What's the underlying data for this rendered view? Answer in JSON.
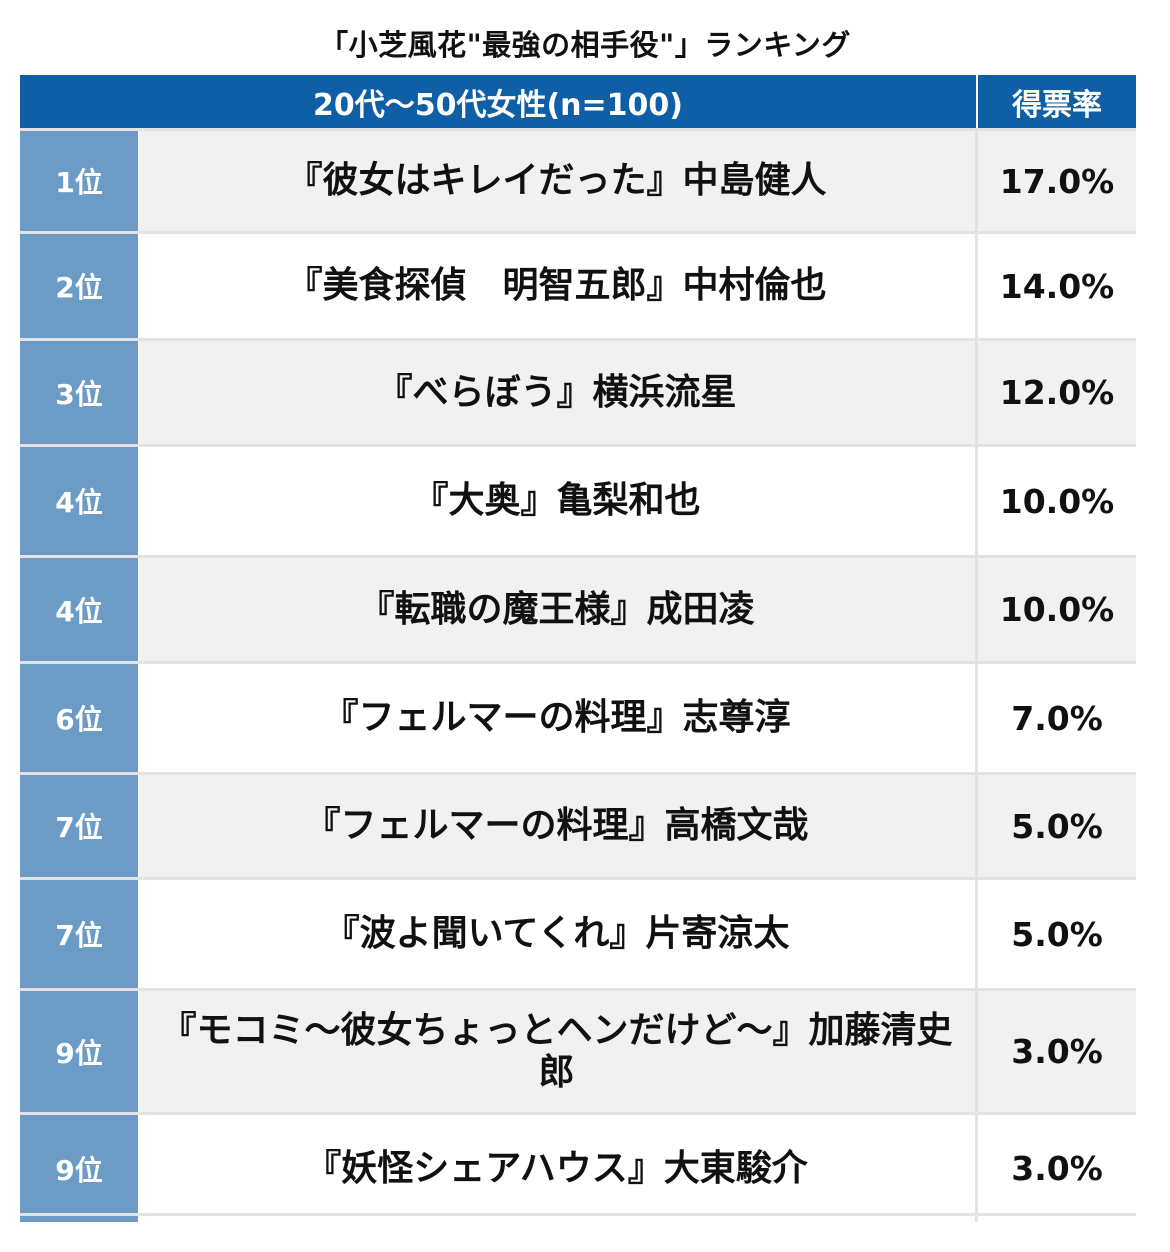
{
  "title": "「小芝風花\"最強の相手役\"」ランキング",
  "header": {
    "group_label": "20代〜50代女性(n=100)",
    "rate_label": "得票率"
  },
  "colors": {
    "header_bg": "#0f5fa6",
    "rank_bg": "#6c9cc6",
    "row_alt_bg": "#f1f1f1"
  },
  "rows": [
    {
      "rank": "1位",
      "name": "『彼女はキレイだった』中島健人",
      "rate": "17.0%"
    },
    {
      "rank": "2位",
      "name": "『美食探偵　明智五郎』中村倫也",
      "rate": "14.0%"
    },
    {
      "rank": "3位",
      "name": "『べらぼう』横浜流星",
      "rate": "12.0%"
    },
    {
      "rank": "4位",
      "name": "『大奥』亀梨和也",
      "rate": "10.0%"
    },
    {
      "rank": "4位",
      "name": "『転職の魔王様』成田凌",
      "rate": "10.0%"
    },
    {
      "rank": "6位",
      "name": "『フェルマーの料理』志尊淳",
      "rate": "7.0%"
    },
    {
      "rank": "7位",
      "name": "『フェルマーの料理』高橋文哉",
      "rate": "5.0%"
    },
    {
      "rank": "7位",
      "name": "『波よ聞いてくれ』片寄涼太",
      "rate": "5.0%"
    },
    {
      "rank": "9位",
      "name": "『モコミ〜彼女ちょっとヘンだけど〜』加藤清史郎",
      "rate": "3.0%"
    },
    {
      "rank": "9位",
      "name": "『妖怪シェアハウス』大東駿介",
      "rate": "3.0%"
    }
  ]
}
